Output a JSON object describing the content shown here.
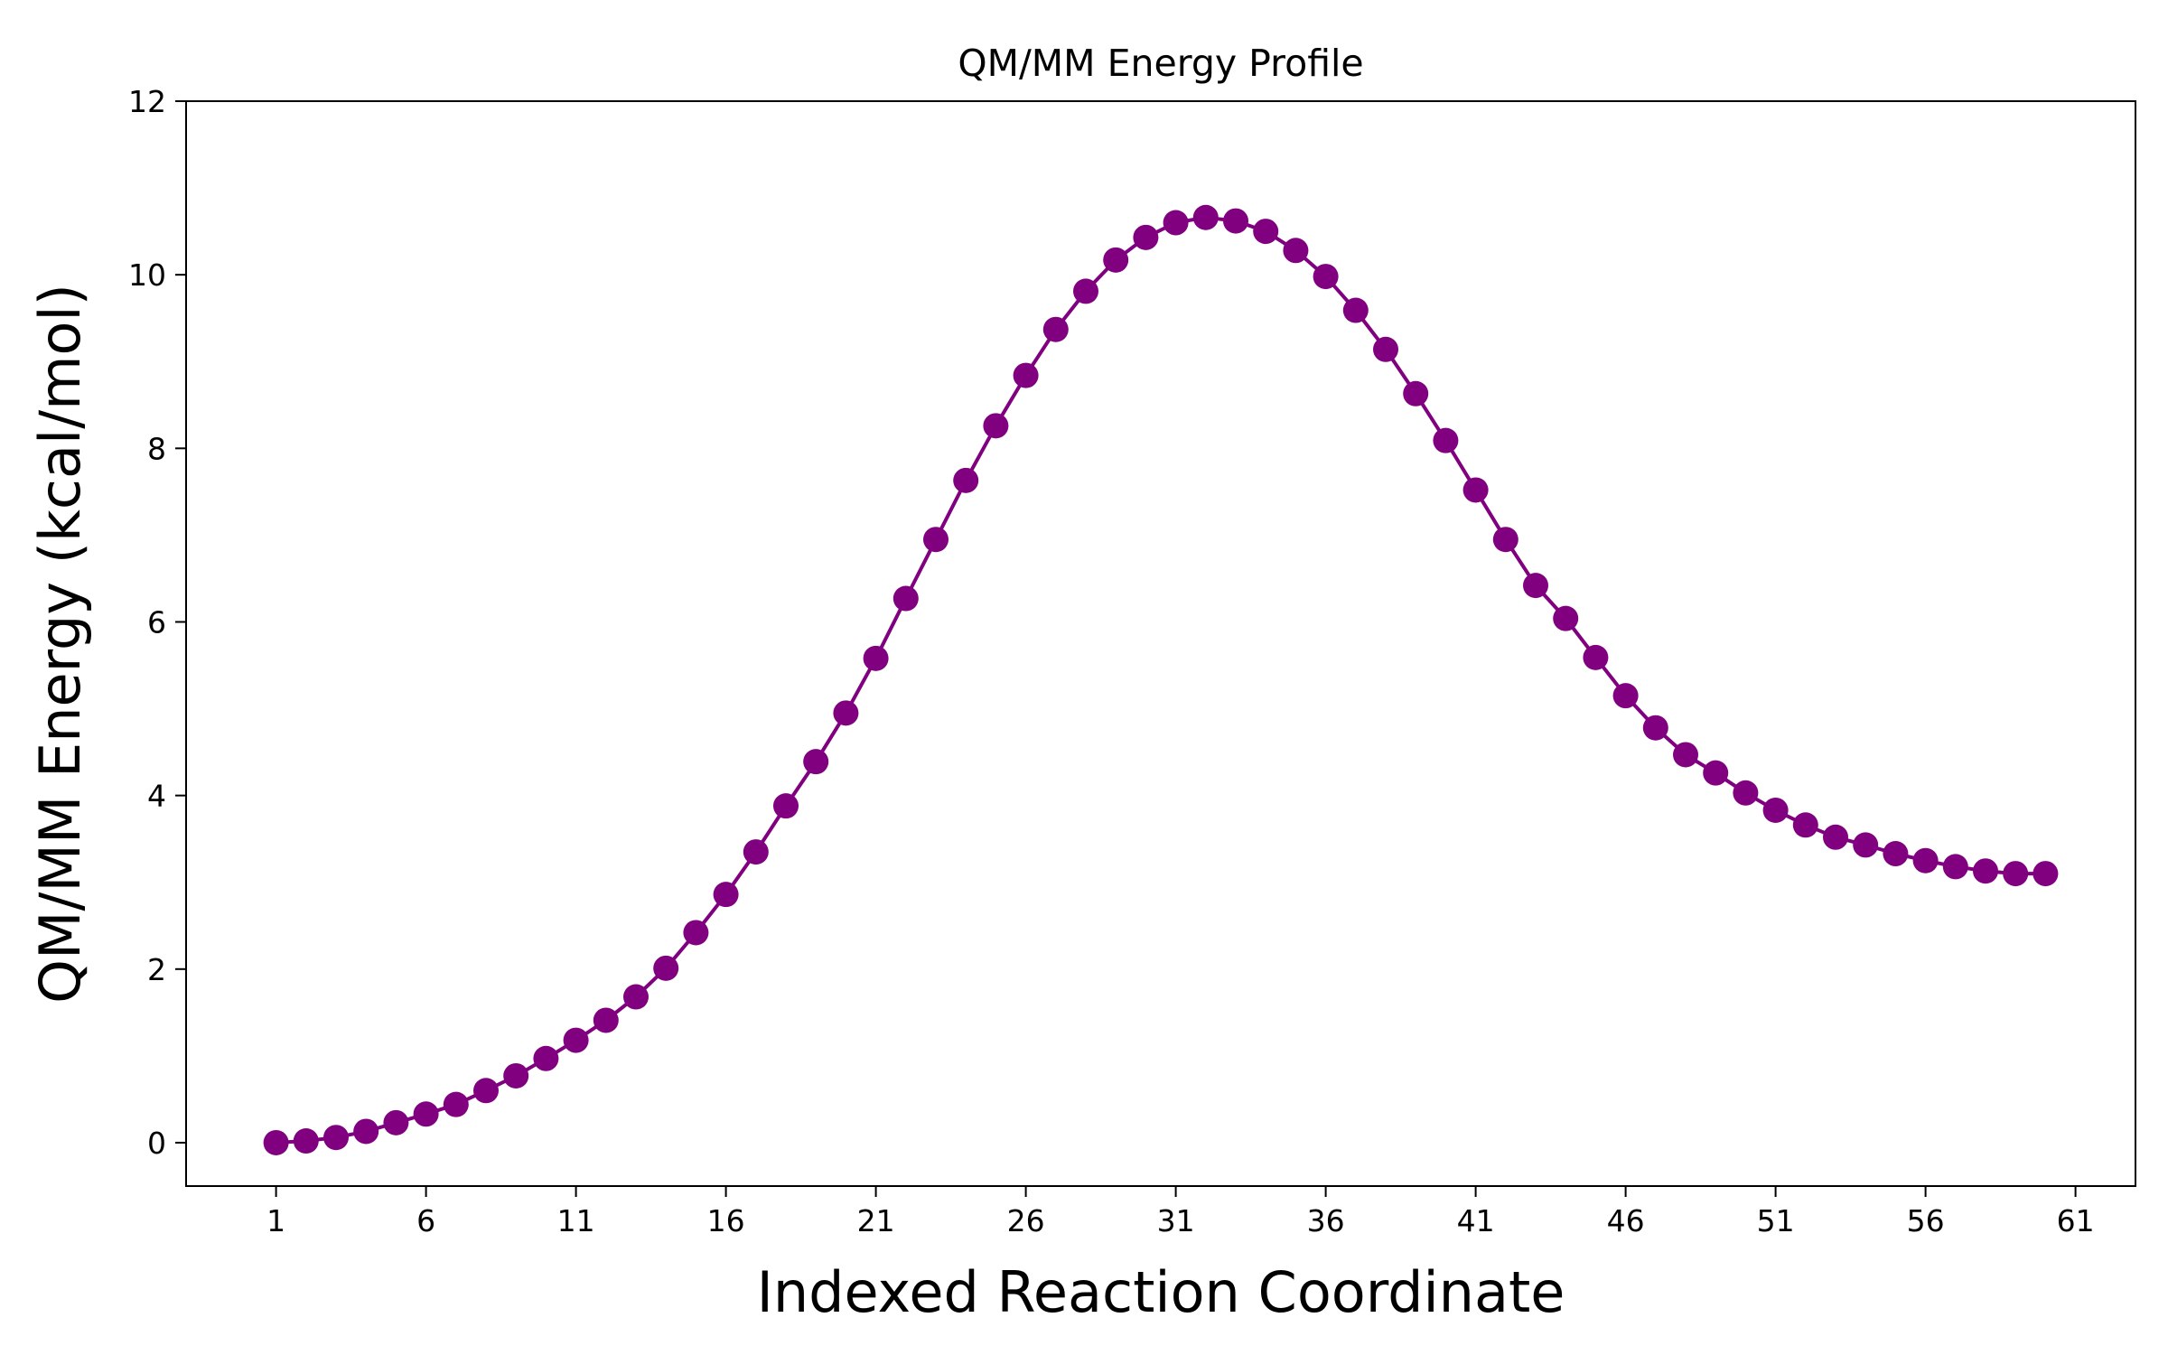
{
  "chart_data": {
    "type": "line",
    "title": "QM/MM Energy Profile",
    "xlabel": "Indexed Reaction Coordinate",
    "ylabel": "QM/MM Energy (kcal/mol)",
    "xlim": [
      -2,
      63
    ],
    "ylim": [
      -0.5,
      12
    ],
    "xticks": [
      1,
      6,
      11,
      16,
      21,
      26,
      31,
      36,
      41,
      46,
      51,
      56,
      61
    ],
    "yticks": [
      0,
      2,
      4,
      6,
      8,
      10,
      12
    ],
    "grid": false,
    "marker": "circle",
    "series": [
      {
        "name": "QM/MM Energy",
        "color": "#800080",
        "x": [
          1,
          2,
          3,
          4,
          5,
          6,
          7,
          8,
          9,
          10,
          11,
          12,
          13,
          14,
          15,
          16,
          17,
          18,
          19,
          20,
          21,
          22,
          23,
          24,
          25,
          26,
          27,
          28,
          29,
          30,
          31,
          32,
          33,
          34,
          35,
          36,
          37,
          38,
          39,
          40,
          41,
          42,
          43,
          44,
          45,
          46,
          47,
          48,
          49,
          50,
          51,
          52,
          53,
          54,
          55,
          56,
          57,
          58,
          59,
          60
        ],
        "values": [
          0.0,
          0.02,
          0.06,
          0.13,
          0.23,
          0.33,
          0.44,
          0.6,
          0.77,
          0.97,
          1.18,
          1.41,
          1.68,
          2.01,
          2.42,
          2.86,
          3.35,
          3.88,
          4.39,
          4.95,
          5.58,
          6.27,
          6.95,
          7.63,
          8.26,
          8.84,
          9.37,
          9.81,
          10.17,
          10.43,
          10.6,
          10.66,
          10.62,
          10.5,
          10.28,
          9.98,
          9.59,
          9.14,
          8.63,
          8.09,
          7.52,
          6.95,
          6.42,
          6.04,
          5.59,
          5.15,
          4.78,
          4.47,
          4.26,
          4.03,
          3.83,
          3.66,
          3.52,
          3.43,
          3.33,
          3.25,
          3.18,
          3.13,
          3.1,
          3.1
        ]
      }
    ]
  }
}
